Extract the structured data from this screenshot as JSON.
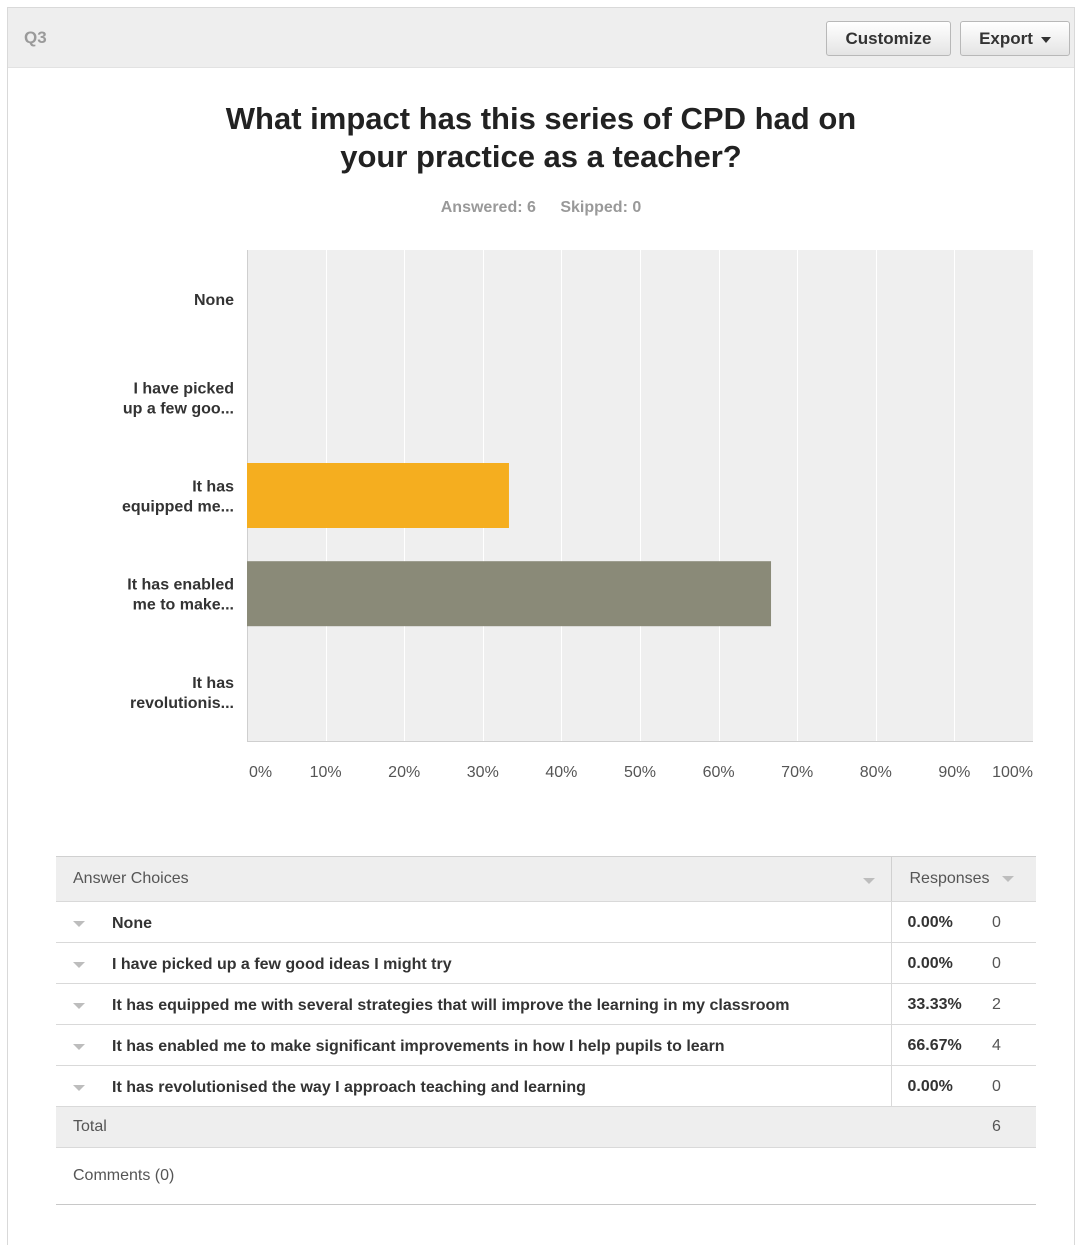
{
  "question": {
    "number": "Q3",
    "title_line1": "What impact has this series of CPD had on",
    "title_line2": "your practice as a teacher?",
    "answered": "Answered: 6",
    "skipped": "Skipped: 0"
  },
  "toolbar": {
    "customize_label": "Customize",
    "export_label": "Export"
  },
  "chart_data": {
    "type": "bar",
    "orientation": "horizontal",
    "categories": [
      [
        "None"
      ],
      [
        "I have picked",
        "up a few goo..."
      ],
      [
        "It has",
        "equipped me..."
      ],
      [
        "It has enabled",
        "me to make..."
      ],
      [
        "It has",
        "revolutionis..."
      ]
    ],
    "values": [
      0,
      0,
      33.33,
      66.67,
      0
    ],
    "bar_colors": [
      "#f5ae1f",
      "#f5ae1f",
      "#f5ae1f",
      "#8a8a78",
      "#8a8a78"
    ],
    "xticks": [
      "0%",
      "10%",
      "20%",
      "30%",
      "40%",
      "50%",
      "60%",
      "70%",
      "80%",
      "90%",
      "100%"
    ],
    "xlim": [
      0,
      100
    ],
    "grid": true
  },
  "table": {
    "header_choices": "Answer Choices",
    "header_responses": "Responses",
    "rows": [
      {
        "label": "None",
        "percent": "0.00%",
        "count": "0"
      },
      {
        "label": "I have picked up a few good ideas I might try",
        "percent": "0.00%",
        "count": "0"
      },
      {
        "label": "It has equipped me with several strategies that will improve the learning in my classroom",
        "percent": "33.33%",
        "count": "2"
      },
      {
        "label": "It has enabled me to make significant improvements in how I help pupils to learn",
        "percent": "66.67%",
        "count": "4"
      },
      {
        "label": "It has revolutionised the way I approach teaching and learning",
        "percent": "0.00%",
        "count": "0"
      }
    ],
    "total_label": "Total",
    "total_value": "6",
    "comments_label": "Comments (0)"
  }
}
